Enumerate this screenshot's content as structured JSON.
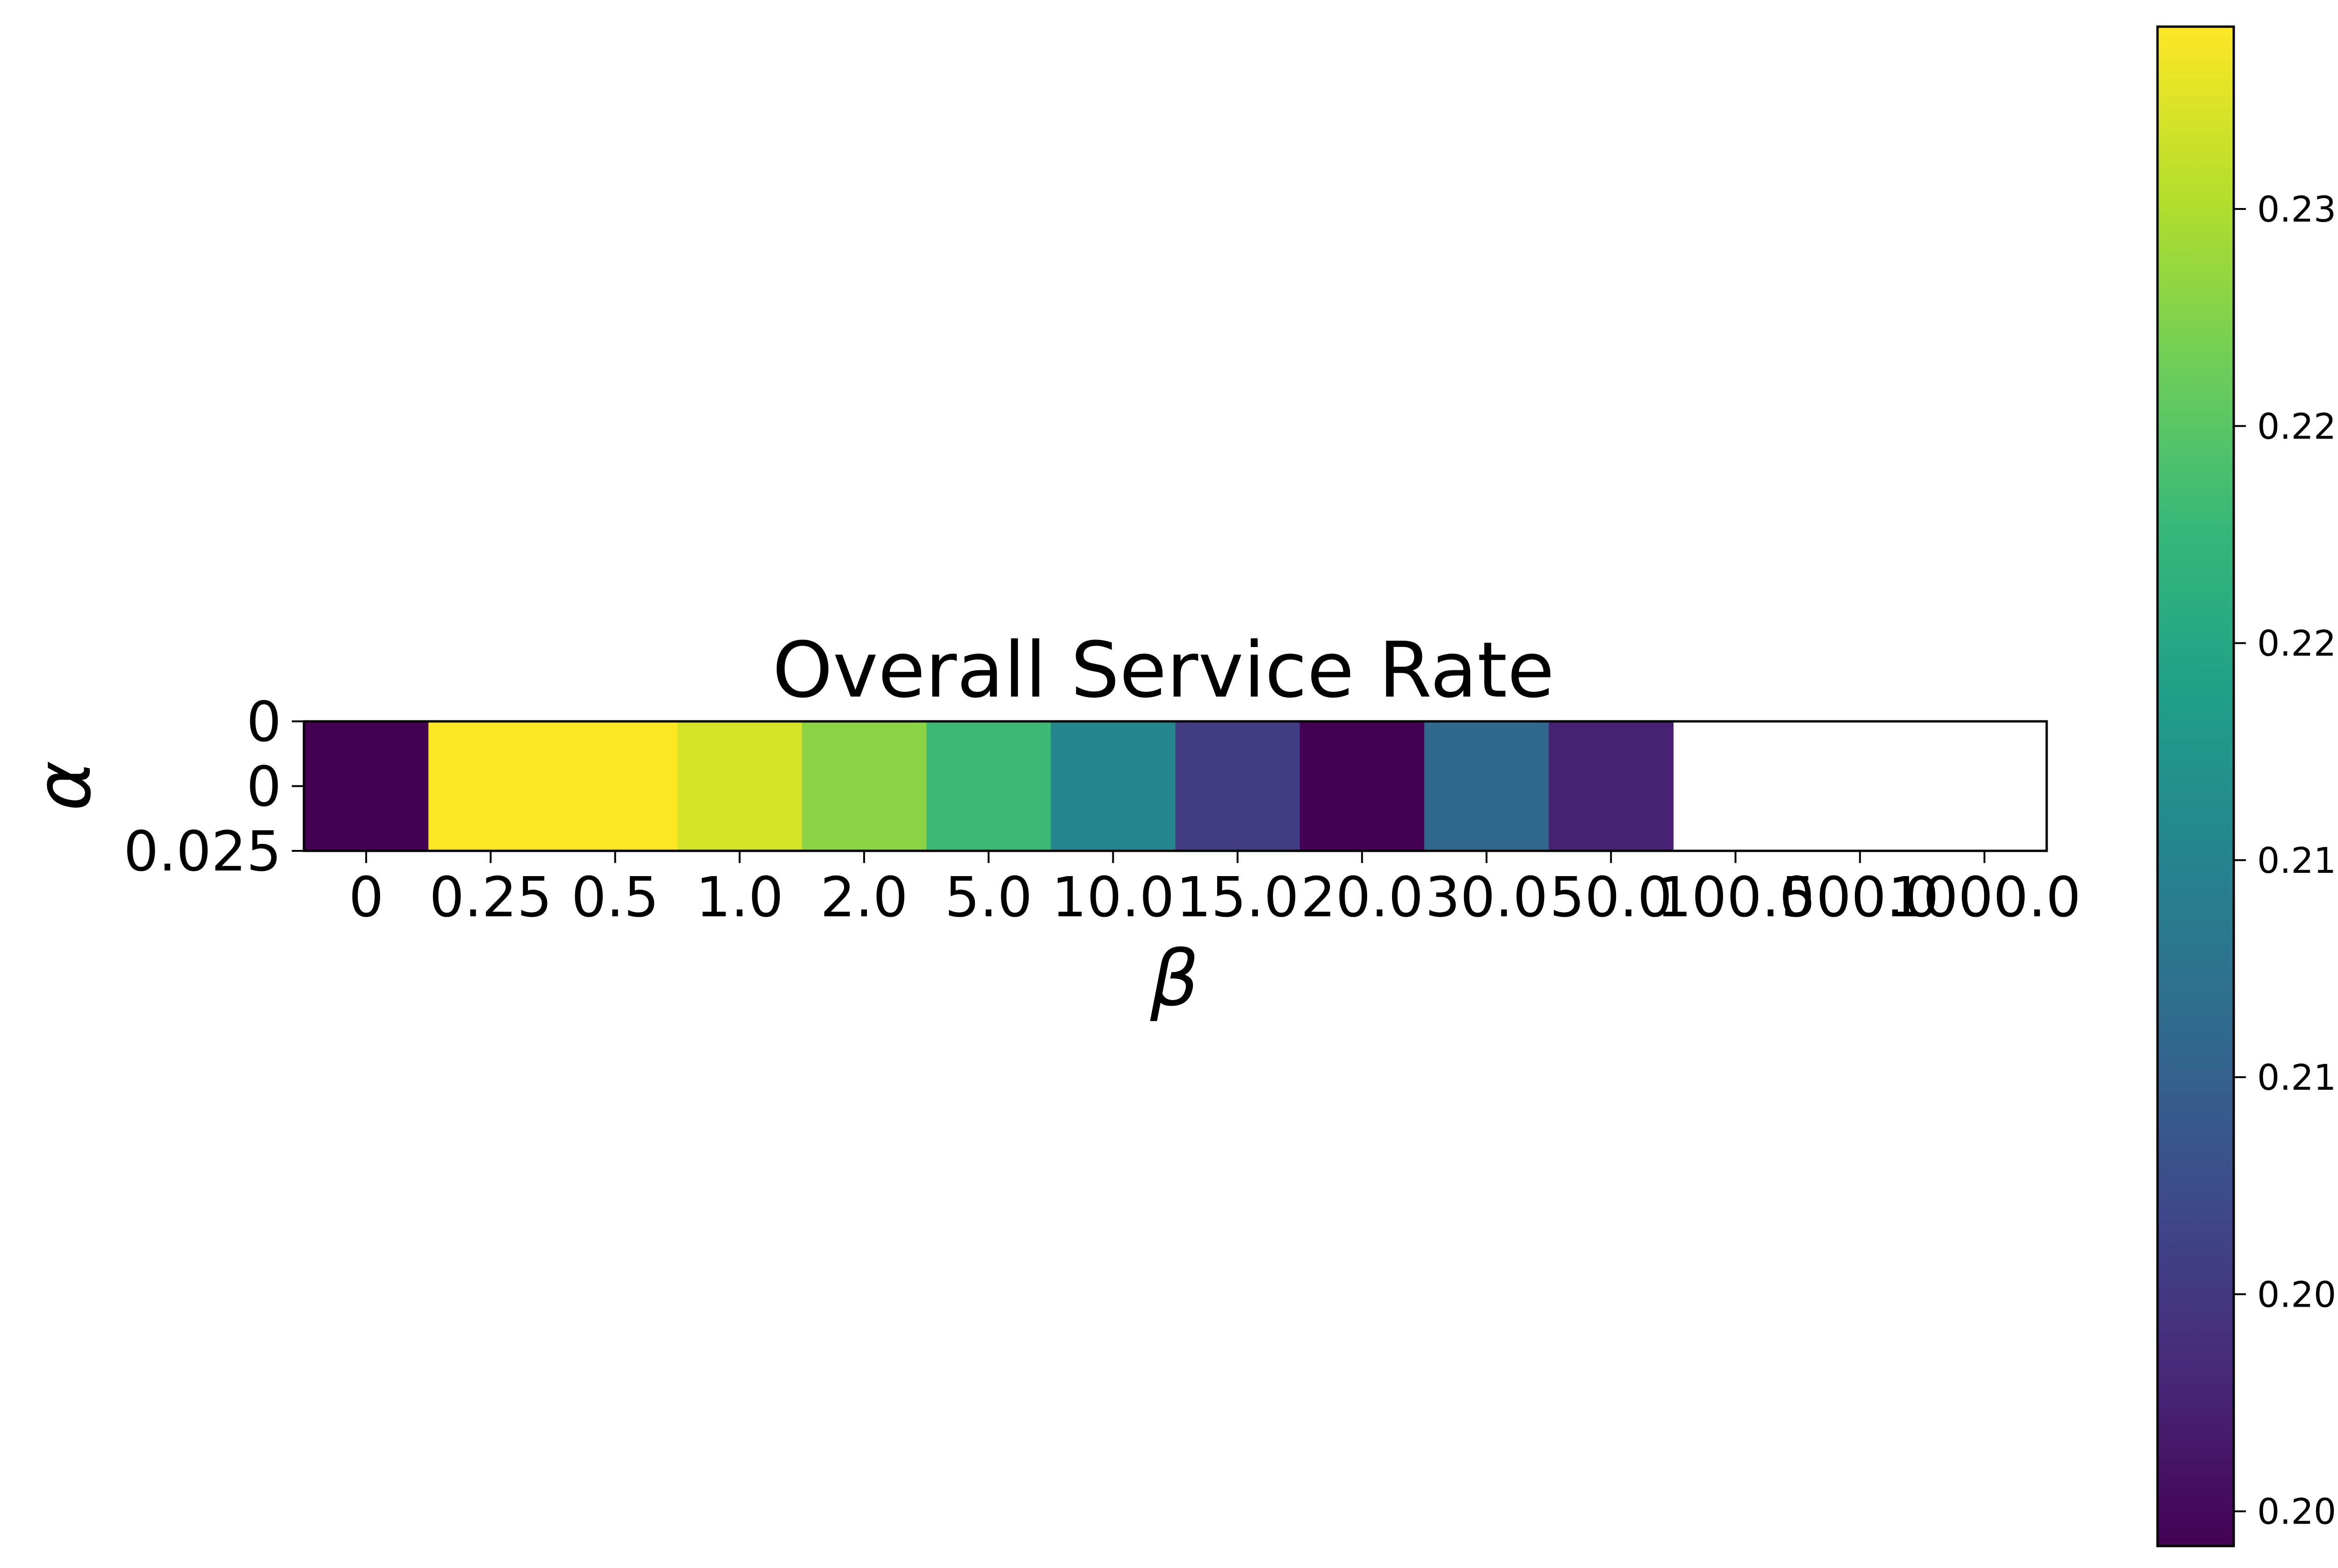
{
  "chart_data": {
    "type": "heatmap",
    "title": "Overall Service Rate",
    "xlabel": "β",
    "ylabel": "α",
    "x_tick_labels": [
      "0",
      "0.25",
      "0.5",
      "1.0",
      "2.0",
      "5.0",
      "10.0",
      "15.0",
      "20.0",
      "30.0",
      "50.0",
      "100.0",
      "500.0",
      "1000.0"
    ],
    "y_tick_labels": [
      "0",
      "0",
      "0.025"
    ],
    "colormap": "viridis",
    "colorbar": {
      "vmin": 0.1992,
      "vmax": 0.2342,
      "ticks": [
        0.2,
        0.205,
        0.21,
        0.215,
        0.22,
        0.225,
        0.23
      ],
      "tick_labels": [
        "0.200",
        "0.205",
        "0.210",
        "0.215",
        "0.220",
        "0.225",
        "0.230"
      ]
    },
    "cells": [
      {
        "x": "0",
        "value": 0.1992
      },
      {
        "x": "0.25",
        "value": 0.2342
      },
      {
        "x": "0.5",
        "value": 0.2342
      },
      {
        "x": "1.0",
        "value": 0.232
      },
      {
        "x": "2.0",
        "value": 0.228
      },
      {
        "x": "5.0",
        "value": 0.223
      },
      {
        "x": "10.0",
        "value": 0.2155
      },
      {
        "x": "15.0",
        "value": 0.2055
      },
      {
        "x": "20.0",
        "value": 0.1992
      },
      {
        "x": "30.0",
        "value": 0.211
      },
      {
        "x": "50.0",
        "value": 0.2025
      },
      {
        "x": "100.0",
        "value": null
      },
      {
        "x": "500.0",
        "value": null
      },
      {
        "x": "1000.0",
        "value": null
      }
    ]
  }
}
